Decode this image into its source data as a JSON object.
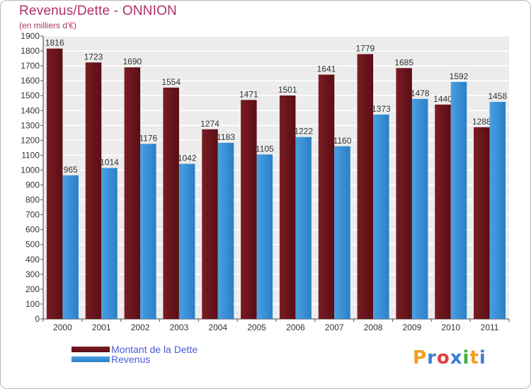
{
  "title": "Revenus/Dette - ONNION",
  "subtitle": "(en milliers d'€)",
  "colors": {
    "dette": "#7a1c24",
    "dette_dark": "#5a0e14",
    "revenus": "#4aa0e2",
    "revenus_dark": "#2a7fc8",
    "title": "#b0306a",
    "legend_text": "#4a5ad6"
  },
  "chart_data": {
    "type": "bar",
    "title": "Revenus/Dette - ONNION",
    "ylabel": "(en milliers d'€)",
    "categories": [
      "2000",
      "2001",
      "2002",
      "2003",
      "2004",
      "2005",
      "2006",
      "2007",
      "2008",
      "2009",
      "2010",
      "2011"
    ],
    "series": [
      {
        "name": "Montant de la Dette",
        "values": [
          1816,
          1723,
          1690,
          1554,
          1274,
          1471,
          1501,
          1641,
          1779,
          1685,
          1440,
          1288
        ]
      },
      {
        "name": "Revenus",
        "values": [
          965,
          1014,
          1176,
          1042,
          1183,
          1105,
          1222,
          1160,
          1373,
          1478,
          1592,
          1458
        ]
      }
    ],
    "ylim": [
      0,
      1900
    ],
    "yticks": [
      0,
      100,
      200,
      300,
      400,
      500,
      600,
      700,
      800,
      900,
      1000,
      1100,
      1200,
      1300,
      1400,
      1500,
      1600,
      1700,
      1800,
      1900
    ],
    "grid": true
  },
  "legend": {
    "items": [
      "Montant de la Dette",
      "Revenus"
    ]
  },
  "logo": {
    "letters": [
      "P",
      "r",
      "o",
      "x",
      "i",
      "t",
      "i"
    ],
    "colors": [
      "#f0a020",
      "#3a7fd0",
      "#e04040",
      "#3a7fd0",
      "#40b040",
      "#f0a020",
      "#3a7fd0"
    ]
  }
}
